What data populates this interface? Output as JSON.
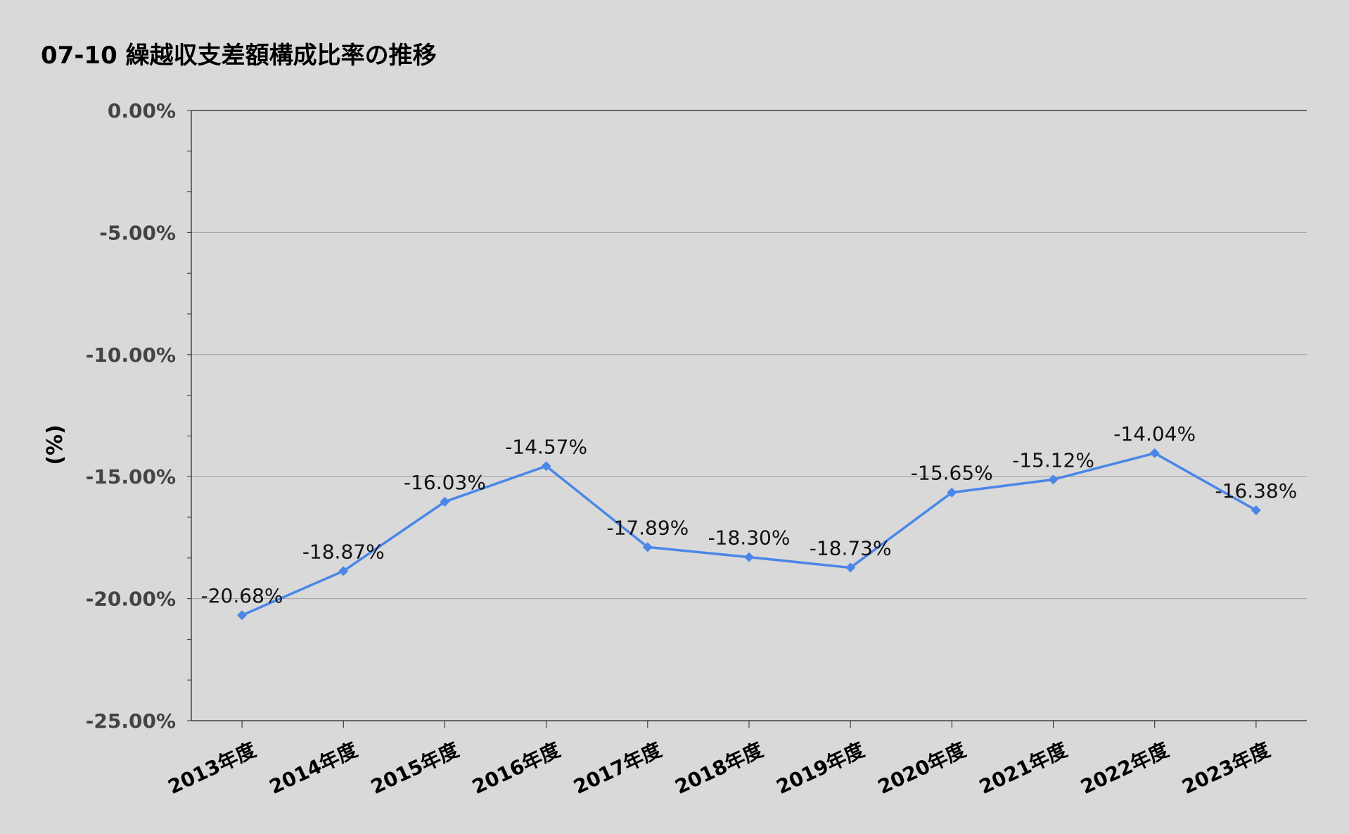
{
  "chart_data": {
    "type": "line",
    "title": "07-10 繰越収支差額構成比率の推移",
    "xlabel": "",
    "ylabel": "(%)",
    "categories": [
      "2013年度",
      "2014年度",
      "2015年度",
      "2016年度",
      "2017年度",
      "2018年度",
      "2019年度",
      "2020年度",
      "2021年度",
      "2022年度",
      "2023年度"
    ],
    "series": [
      {
        "values": [
          -20.68,
          -18.87,
          -16.03,
          -14.57,
          -17.89,
          -18.3,
          -18.73,
          -15.65,
          -15.12,
          -14.04,
          -16.38
        ],
        "labels": [
          "-20.68%",
          "-18.87%",
          "-16.03%",
          "-14.57%",
          "-17.89%",
          "-18.30%",
          "-18.73%",
          "-15.65%",
          "-15.12%",
          "-14.04%",
          "-16.38%"
        ],
        "color": "#4a86e8",
        "marker": "diamond"
      }
    ],
    "yticks": [
      0,
      -5,
      -10,
      -15,
      -20,
      -25
    ],
    "ytick_labels": [
      "0.00%",
      "-5.00%",
      "-10.00%",
      "-15.00%",
      "-20.00%",
      "-25.00%"
    ],
    "ylim": [
      -25,
      0
    ],
    "grid": true,
    "legend": "none"
  }
}
